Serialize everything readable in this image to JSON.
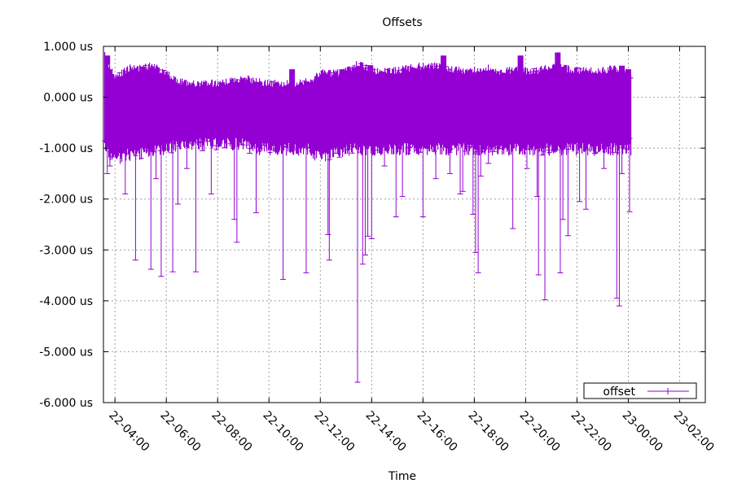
{
  "chart_data": {
    "type": "line",
    "title": "Offsets",
    "xlabel": "Time",
    "ylabel": "",
    "ylim": [
      -6,
      1
    ],
    "yticks": [
      1,
      0,
      -1,
      -2,
      -3,
      -4,
      -5,
      -6
    ],
    "ytick_labels": [
      "1.000 us",
      "0.000 us",
      "-1.000 us",
      "-2.000 us",
      "-3.000 us",
      "-4.000 us",
      "-5.000 us",
      "-6.000 us"
    ],
    "xlim_hours": [
      3.55,
      27.0
    ],
    "xticks_hours": [
      4,
      6,
      8,
      10,
      12,
      14,
      16,
      18,
      20,
      22,
      24,
      26
    ],
    "xtick_labels": [
      "22-04:00",
      "22-06:00",
      "22-08:00",
      "22-10:00",
      "22-12:00",
      "22-14:00",
      "22-16:00",
      "22-18:00",
      "22-20:00",
      "22-22:00",
      "23-00:00",
      "23-02:00"
    ],
    "grid": true,
    "legend_position": "bottom-right",
    "series": [
      {
        "name": "offset",
        "color": "#9400d3",
        "band": [
          [
            3.6,
            -0.9,
            0.75
          ],
          [
            4.0,
            -1.1,
            0.3
          ],
          [
            4.5,
            -1.0,
            0.5
          ],
          [
            5.0,
            -1.0,
            0.5
          ],
          [
            5.5,
            -0.9,
            0.55
          ],
          [
            6.0,
            -0.9,
            0.4
          ],
          [
            6.5,
            -0.8,
            0.25
          ],
          [
            7.0,
            -0.8,
            0.2
          ],
          [
            7.5,
            -0.8,
            0.2
          ],
          [
            8.0,
            -0.8,
            0.2
          ],
          [
            8.5,
            -0.8,
            0.25
          ],
          [
            9.0,
            -0.8,
            0.3
          ],
          [
            9.5,
            -0.9,
            0.25
          ],
          [
            10.0,
            -0.9,
            0.2
          ],
          [
            10.5,
            -0.9,
            0.2
          ],
          [
            11.0,
            -0.9,
            0.2
          ],
          [
            11.6,
            -0.9,
            0.25
          ],
          [
            12.0,
            -1.1,
            0.4
          ],
          [
            12.5,
            -1.0,
            0.4
          ],
          [
            13.0,
            -0.9,
            0.45
          ],
          [
            13.5,
            -0.9,
            0.6
          ],
          [
            14.0,
            -0.9,
            0.45
          ],
          [
            14.5,
            -0.9,
            0.45
          ],
          [
            15.0,
            -0.9,
            0.45
          ],
          [
            15.5,
            -0.9,
            0.5
          ],
          [
            16.0,
            -0.9,
            0.55
          ],
          [
            16.5,
            -0.9,
            0.55
          ],
          [
            17.0,
            -0.9,
            0.5
          ],
          [
            17.5,
            -0.9,
            0.45
          ],
          [
            18.0,
            -0.9,
            0.45
          ],
          [
            18.5,
            -0.9,
            0.5
          ],
          [
            19.0,
            -0.9,
            0.45
          ],
          [
            19.5,
            -0.9,
            0.45
          ],
          [
            20.0,
            -0.9,
            0.45
          ],
          [
            20.5,
            -0.9,
            0.45
          ],
          [
            21.0,
            -0.9,
            0.55
          ],
          [
            21.5,
            -0.9,
            0.5
          ],
          [
            22.0,
            -0.9,
            0.45
          ],
          [
            22.5,
            -0.9,
            0.45
          ],
          [
            23.0,
            -0.9,
            0.45
          ],
          [
            23.5,
            -0.9,
            0.5
          ],
          [
            24.1,
            -0.9,
            0.4
          ]
        ],
        "spikes": [
          [
            3.7,
            -1.5
          ],
          [
            3.8,
            -1.35
          ],
          [
            4.4,
            -1.9
          ],
          [
            4.8,
            -3.2
          ],
          [
            5.4,
            -3.38
          ],
          [
            5.6,
            -1.6
          ],
          [
            5.8,
            -3.52
          ],
          [
            6.25,
            -3.43
          ],
          [
            6.45,
            -2.1
          ],
          [
            6.8,
            -1.4
          ],
          [
            7.15,
            -3.43
          ],
          [
            7.4,
            -1.05
          ],
          [
            7.75,
            -1.9
          ],
          [
            8.65,
            -2.4
          ],
          [
            8.75,
            -2.85
          ],
          [
            9.25,
            -1.1
          ],
          [
            9.5,
            -2.27
          ],
          [
            10.55,
            -3.58
          ],
          [
            10.9,
            -1.05
          ],
          [
            11.45,
            -3.45
          ],
          [
            11.85,
            -1.0
          ],
          [
            12.3,
            -2.7
          ],
          [
            12.35,
            -3.2
          ],
          [
            12.6,
            -1.1
          ],
          [
            13.45,
            -5.6
          ],
          [
            13.65,
            -3.28
          ],
          [
            13.75,
            -3.1
          ],
          [
            13.85,
            -2.73
          ],
          [
            14.0,
            -2.78
          ],
          [
            14.5,
            -1.35
          ],
          [
            14.95,
            -2.35
          ],
          [
            15.2,
            -1.95
          ],
          [
            16.0,
            -2.35
          ],
          [
            16.5,
            -1.6
          ],
          [
            17.05,
            -1.5
          ],
          [
            17.45,
            -1.9
          ],
          [
            17.55,
            -1.85
          ],
          [
            17.95,
            -2.3
          ],
          [
            18.05,
            -3.05
          ],
          [
            18.15,
            -3.45
          ],
          [
            18.25,
            -1.55
          ],
          [
            18.55,
            -1.3
          ],
          [
            19.5,
            -2.58
          ],
          [
            20.05,
            -1.4
          ],
          [
            20.45,
            -1.95
          ],
          [
            20.5,
            -3.49
          ],
          [
            20.75,
            -3.98
          ],
          [
            21.35,
            -3.45
          ],
          [
            21.45,
            -2.4
          ],
          [
            21.65,
            -2.72
          ],
          [
            22.1,
            -2.05
          ],
          [
            22.35,
            -2.2
          ],
          [
            22.7,
            -1.1
          ],
          [
            23.05,
            -1.4
          ],
          [
            23.55,
            -3.95
          ],
          [
            23.65,
            -4.1
          ],
          [
            23.75,
            -1.5
          ],
          [
            24.05,
            -2.25
          ]
        ],
        "peaks": [
          [
            3.7,
            0.82
          ],
          [
            5.1,
            0.6
          ],
          [
            9.5,
            0.3
          ],
          [
            10.9,
            0.55
          ],
          [
            12.85,
            0.55
          ],
          [
            13.95,
            0.63
          ],
          [
            15.75,
            0.55
          ],
          [
            16.8,
            0.82
          ],
          [
            18.5,
            0.52
          ],
          [
            19.8,
            0.82
          ],
          [
            21.25,
            0.88
          ],
          [
            21.5,
            0.6
          ],
          [
            23.75,
            0.62
          ],
          [
            24.0,
            0.55
          ]
        ]
      }
    ]
  }
}
